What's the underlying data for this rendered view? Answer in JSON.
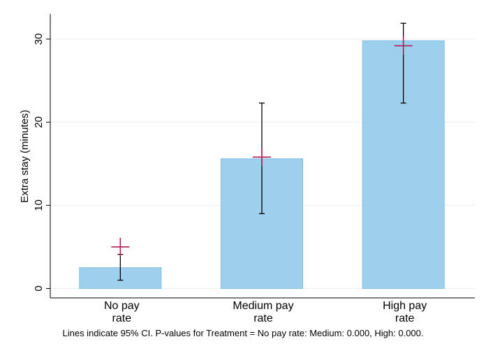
{
  "chart_data": {
    "type": "bar",
    "categories": [
      [
        "No pay",
        "rate"
      ],
      [
        "Medium pay",
        "rate"
      ],
      [
        "High pay",
        "rate"
      ]
    ],
    "values": [
      2.5,
      15.6,
      29.8
    ],
    "ci_low": [
      1.0,
      9.0,
      22.3
    ],
    "ci_high": [
      4.1,
      22.3,
      31.9
    ],
    "point_estimates": [
      5.0,
      15.8,
      29.2
    ],
    "ylabel": "Extra stay (minutes)",
    "xlabel": "",
    "ylim": [
      0,
      33
    ],
    "yticks": [
      0,
      10,
      20,
      30
    ],
    "grid": true,
    "note": "Lines indicate 95% CI. P-values for Treatment = No pay rate: Medium: 0.000, High: 0.000.",
    "colors": {
      "bar_fill": "#9ecfed",
      "bar_stroke": "#7fbde3",
      "ci_line": "#000000",
      "point_marker": "#b01e5a",
      "grid": "#e8eef2"
    }
  }
}
